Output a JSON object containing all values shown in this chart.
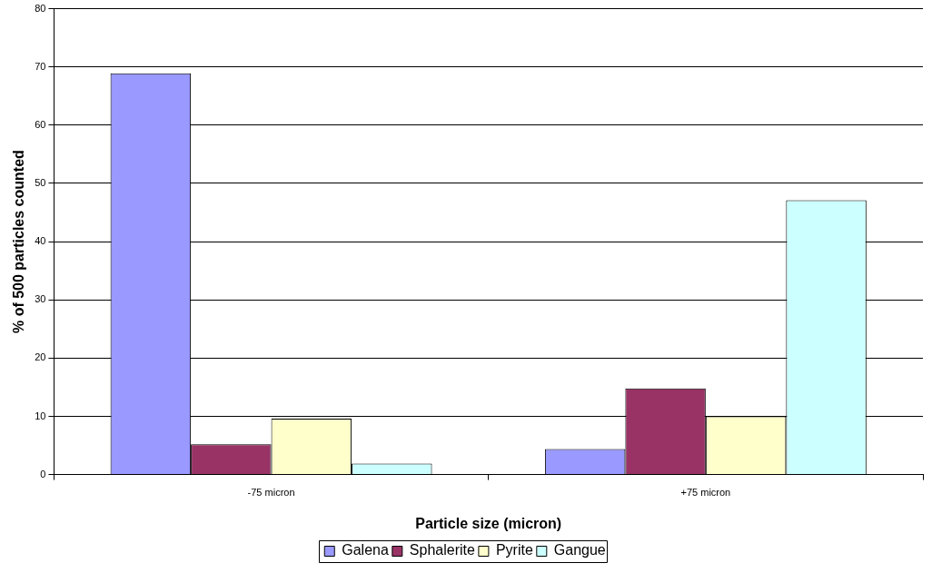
{
  "chart_data": {
    "type": "bar",
    "xlabel": "Particle size (micron)",
    "ylabel": "% of 500 particles counted",
    "categories": [
      "-75 micron",
      "+75 micron"
    ],
    "series": [
      {
        "name": "Galena",
        "color": "#9999ff",
        "values": [
          68.9,
          4.4
        ]
      },
      {
        "name": "Sphalerite",
        "color": "#993366",
        "values": [
          5.2,
          14.8
        ]
      },
      {
        "name": "Pyrite",
        "color": "#ffffcc",
        "values": [
          9.6,
          10.0
        ]
      },
      {
        "name": "Gangue",
        "color": "#ccffff",
        "values": [
          1.9,
          47.1
        ]
      }
    ],
    "ylim": [
      0,
      80
    ],
    "yticks": [
      0,
      10,
      20,
      30,
      40,
      50,
      60,
      70,
      80
    ],
    "grid": "y",
    "legend": "bottom"
  }
}
